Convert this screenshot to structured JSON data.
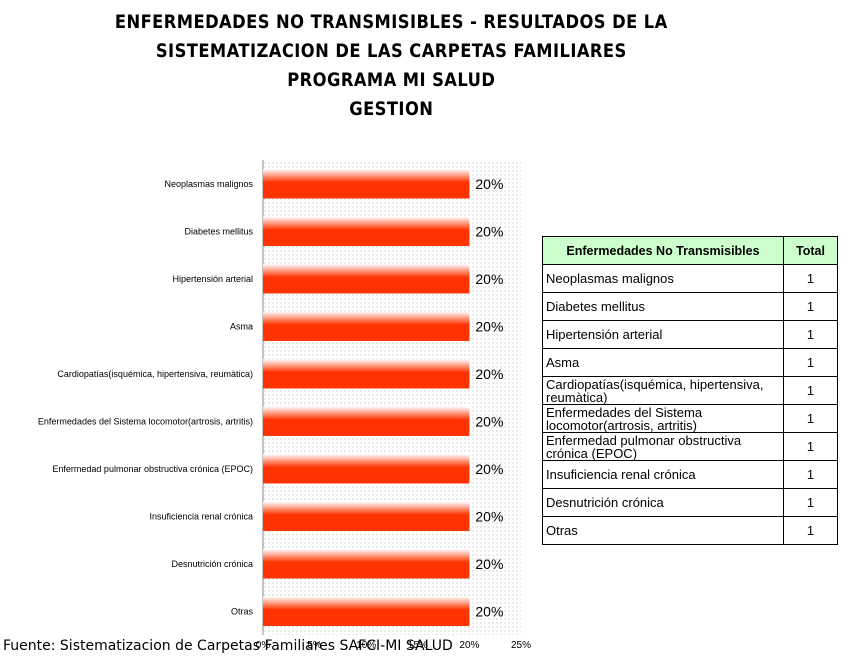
{
  "title": {
    "line1": "ENFERMEDADES NO TRANSMISIBLES - RESULTADOS DE LA",
    "line2": "SISTEMATIZACION DE LAS CARPETAS FAMILIARES",
    "line3": "PROGRAMA MI SALUD",
    "line4": "GESTION"
  },
  "colors": {
    "bar": "#ff3300",
    "bar_highlight": "#ffffff",
    "header_bg": "#ccffcc"
  },
  "chart_data": {
    "type": "bar",
    "orientation": "horizontal",
    "categories": [
      "Neoplasmas malignos",
      "Diabetes mellitus",
      "Hipertensión arterial",
      "Asma",
      "Cardiopatías(isquémica, hipertensiva, reumàtica)",
      "Enfermedades del Sistema locomotor(artrosis, artritis)",
      "Enfermedad pulmonar obstructiva crónica (EPOC)",
      "Insuficiencia renal crónica",
      "Desnutrición crónica",
      "Otras"
    ],
    "values": [
      20,
      20,
      20,
      20,
      20,
      20,
      20,
      20,
      20,
      20
    ],
    "value_labels": [
      "20%",
      "20%",
      "20%",
      "20%",
      "20%",
      "20%",
      "20%",
      "20%",
      "20%",
      "20%"
    ],
    "xlim": [
      0,
      25
    ],
    "xticks": [
      "0%",
      "5%",
      "10%",
      "15%",
      "20%",
      "25%"
    ],
    "grid": false
  },
  "table": {
    "headers": [
      "Enfermedades No Transmisibles",
      "Total"
    ],
    "rows": [
      [
        "Neoplasmas malignos",
        "1"
      ],
      [
        "Diabetes mellitus",
        "1"
      ],
      [
        "Hipertensión arterial",
        "1"
      ],
      [
        "Asma",
        "1"
      ],
      [
        "Cardiopatías(isquémica, hipertensiva, reumàtica)",
        "1"
      ],
      [
        "Enfermedades del Sistema locomotor(artrosis, artritis)",
        "1"
      ],
      [
        "Enfermedad pulmonar obstructiva crónica (EPOC)",
        "1"
      ],
      [
        "Insuficiencia renal crónica",
        "1"
      ],
      [
        "Desnutrición crónica",
        "1"
      ],
      [
        "Otras",
        "1"
      ]
    ]
  },
  "source": "Fuente: Sistematizacion de Carpetas Familiares SAFCI-MI SALUD"
}
